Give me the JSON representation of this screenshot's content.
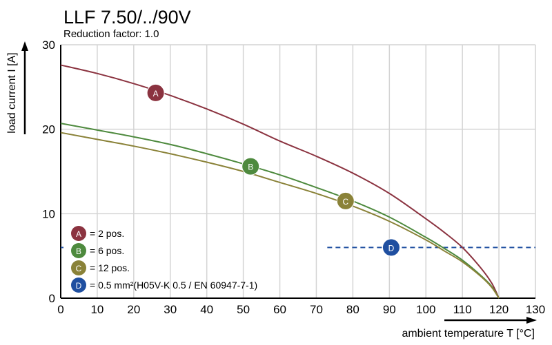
{
  "title": "LLF 7.50/../90V",
  "subtitle": "Reduction factor: 1.0",
  "chart_data": {
    "type": "line",
    "xlabel": "ambient temperature T [°C]",
    "ylabel": "load current I [A]",
    "xlim": [
      0,
      130
    ],
    "ylim": [
      0,
      30
    ],
    "x_ticks": [
      "0",
      "10",
      "20",
      "30",
      "40",
      "50",
      "60",
      "70",
      "80",
      "90",
      "100",
      "110",
      "120",
      "130"
    ],
    "y_ticks": [
      "0",
      "10",
      "20",
      "30"
    ],
    "grid": true,
    "legend_position": "bottom-left",
    "series": [
      {
        "id": "A",
        "name": "= 2 pos.",
        "color": "#8b3340",
        "x": [
          0,
          10,
          20,
          30,
          40,
          50,
          60,
          70,
          80,
          90,
          100,
          105,
          110,
          115,
          118,
          120
        ],
        "y": [
          27.6,
          26.6,
          25.4,
          24.0,
          22.4,
          20.6,
          18.6,
          16.8,
          14.8,
          12.4,
          9.4,
          7.8,
          6.0,
          3.6,
          1.8,
          0
        ],
        "marker_x": 26,
        "marker_y": 24.3
      },
      {
        "id": "B",
        "name": "= 6 pos.",
        "color": "#4e8a3e",
        "x": [
          0,
          10,
          20,
          30,
          40,
          50,
          60,
          70,
          80,
          90,
          100,
          105,
          110,
          115,
          118,
          120
        ],
        "y": [
          20.7,
          19.9,
          19.1,
          18.2,
          17.1,
          15.9,
          14.6,
          13.1,
          11.5,
          9.6,
          7.2,
          5.9,
          4.5,
          2.7,
          1.4,
          0
        ],
        "marker_x": 52,
        "marker_y": 15.6
      },
      {
        "id": "C",
        "name": "= 12 pos.",
        "color": "#8a8238",
        "x": [
          0,
          10,
          20,
          30,
          40,
          50,
          60,
          70,
          80,
          90,
          100,
          105,
          110,
          115,
          118,
          120
        ],
        "y": [
          19.6,
          18.8,
          18.0,
          17.1,
          16.1,
          15.0,
          13.7,
          12.4,
          10.9,
          9.1,
          6.9,
          5.6,
          4.3,
          2.6,
          1.3,
          0
        ],
        "marker_x": 78,
        "marker_y": 11.5
      }
    ],
    "reference_line": {
      "id": "D",
      "name": "= 0.5 mm²(H05V-K 0.5 / EN 60947-7-1)",
      "color": "#1f4fa0",
      "y": 6.0,
      "x_start": 73,
      "x_end": 130,
      "marker_x": 90.5,
      "style": "dashed"
    }
  }
}
